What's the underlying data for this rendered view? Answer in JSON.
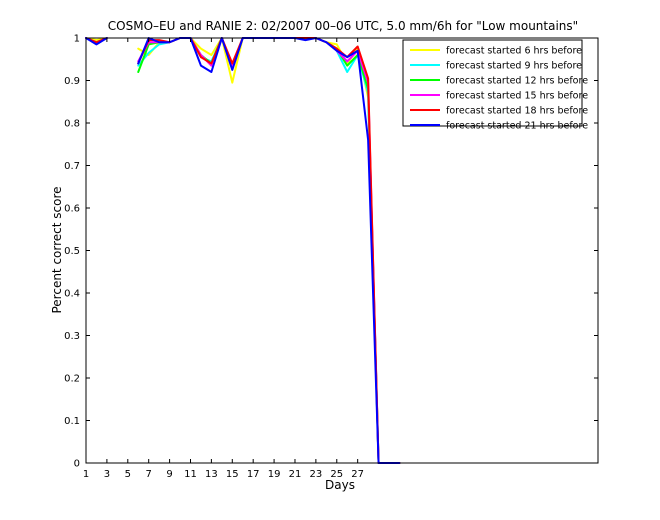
{
  "chart_data": {
    "type": "line",
    "title": "COSMO–EU and RANIE 2: 02/2007 00–06 UTC, 5.0 mm/6h for \"Low mountains\"",
    "xlabel": "Days",
    "ylabel": "Percent correct score",
    "xlim": [
      1,
      50
    ],
    "ylim": [
      0,
      1
    ],
    "xticks": [
      1,
      3,
      5,
      7,
      9,
      11,
      13,
      15,
      17,
      19,
      21,
      23,
      25,
      27
    ],
    "yticks": [
      0,
      0.1,
      0.2,
      0.3,
      0.4,
      0.5,
      0.6,
      0.7,
      0.8,
      0.9,
      1
    ],
    "ytick_labels": [
      "0",
      "0.1",
      "0.2",
      "0.3",
      "0.4",
      "0.5",
      "0.6",
      "0.7",
      "0.8",
      "0.9",
      "1"
    ],
    "grid": false,
    "legend_position": "top-right",
    "series": [
      {
        "name": "forecast started 6 hrs before",
        "color": "#ffff00",
        "segments": [
          [
            [
              1,
              1.0
            ],
            [
              2,
              0.995
            ],
            [
              3,
              1.0
            ]
          ],
          [
            [
              6,
              0.975
            ],
            [
              7,
              0.96
            ],
            [
              8,
              0.99
            ],
            [
              9,
              0.99
            ],
            [
              10,
              1.0
            ],
            [
              11,
              1.0
            ],
            [
              12,
              0.975
            ],
            [
              13,
              0.96
            ],
            [
              14,
              1.0
            ],
            [
              15,
              0.895
            ],
            [
              16,
              1.0
            ],
            [
              17,
              1.0
            ],
            [
              18,
              1.0
            ],
            [
              19,
              1.0
            ],
            [
              20,
              1.0
            ],
            [
              21,
              1.0
            ],
            [
              22,
              1.0
            ],
            [
              23,
              1.0
            ],
            [
              24,
              0.99
            ],
            [
              25,
              0.985
            ],
            [
              26,
              0.94
            ],
            [
              27,
              0.975
            ],
            [
              28,
              0.86
            ],
            [
              29,
              0.0
            ],
            [
              30,
              0.0
            ],
            [
              31,
              0.0
            ]
          ]
        ]
      },
      {
        "name": "forecast started 9 hrs before",
        "color": "#00ffff",
        "segments": [
          [
            [
              1,
              1.0
            ],
            [
              2,
              0.99
            ],
            [
              3,
              1.0
            ]
          ],
          [
            [
              6,
              0.935
            ],
            [
              7,
              0.965
            ],
            [
              8,
              0.985
            ],
            [
              9,
              0.99
            ],
            [
              10,
              1.0
            ],
            [
              11,
              1.0
            ],
            [
              12,
              0.955
            ],
            [
              13,
              0.945
            ],
            [
              14,
              1.0
            ],
            [
              15,
              0.93
            ],
            [
              16,
              1.0
            ],
            [
              17,
              1.0
            ],
            [
              18,
              1.0
            ],
            [
              19,
              1.0
            ],
            [
              20,
              1.0
            ],
            [
              21,
              1.0
            ],
            [
              22,
              1.0
            ],
            [
              23,
              1.0
            ],
            [
              24,
              0.99
            ],
            [
              25,
              0.97
            ],
            [
              26,
              0.92
            ],
            [
              27,
              0.96
            ],
            [
              28,
              0.87
            ],
            [
              29,
              0.0
            ],
            [
              30,
              0.0
            ],
            [
              31,
              0.0
            ]
          ]
        ]
      },
      {
        "name": "forecast started 12 hrs before",
        "color": "#00ff00",
        "segments": [
          [
            [
              1,
              1.0
            ],
            [
              2,
              0.99
            ],
            [
              3,
              1.0
            ]
          ],
          [
            [
              6,
              0.92
            ],
            [
              7,
              0.985
            ],
            [
              8,
              0.99
            ],
            [
              9,
              0.99
            ],
            [
              10,
              1.0
            ],
            [
              11,
              1.0
            ],
            [
              12,
              0.96
            ],
            [
              13,
              0.94
            ],
            [
              14,
              1.0
            ],
            [
              15,
              0.93
            ],
            [
              16,
              1.0
            ],
            [
              17,
              1.0
            ],
            [
              18,
              1.0
            ],
            [
              19,
              1.0
            ],
            [
              20,
              1.0
            ],
            [
              21,
              1.0
            ],
            [
              22,
              1.0
            ],
            [
              23,
              1.0
            ],
            [
              24,
              0.99
            ],
            [
              25,
              0.975
            ],
            [
              26,
              0.935
            ],
            [
              27,
              0.96
            ],
            [
              28,
              0.88
            ],
            [
              29,
              0.0
            ],
            [
              30,
              0.0
            ],
            [
              31,
              0.0
            ]
          ]
        ]
      },
      {
        "name": "forecast started 15 hrs before",
        "color": "#ff00ff",
        "segments": [
          [
            [
              1,
              1.0
            ],
            [
              2,
              0.99
            ],
            [
              3,
              1.0
            ]
          ],
          [
            [
              6,
              0.945
            ],
            [
              7,
              0.99
            ],
            [
              8,
              0.99
            ],
            [
              9,
              0.99
            ],
            [
              10,
              1.0
            ],
            [
              11,
              1.0
            ],
            [
              12,
              0.96
            ],
            [
              13,
              0.935
            ],
            [
              14,
              1.0
            ],
            [
              15,
              0.93
            ],
            [
              16,
              1.0
            ],
            [
              17,
              1.0
            ],
            [
              18,
              1.0
            ],
            [
              19,
              1.0
            ],
            [
              20,
              1.0
            ],
            [
              21,
              1.0
            ],
            [
              22,
              1.0
            ],
            [
              23,
              1.0
            ],
            [
              24,
              0.99
            ],
            [
              25,
              0.97
            ],
            [
              26,
              0.945
            ],
            [
              27,
              0.97
            ],
            [
              28,
              0.895
            ],
            [
              29,
              0.0
            ],
            [
              30,
              0.0
            ],
            [
              31,
              0.0
            ]
          ]
        ]
      },
      {
        "name": "forecast started 18 hrs before",
        "color": "#ff0000",
        "segments": [
          [
            [
              1,
              1.0
            ],
            [
              2,
              0.99
            ],
            [
              3,
              1.0
            ]
          ],
          [
            [
              6,
              0.94
            ],
            [
              7,
              0.995
            ],
            [
              8,
              0.995
            ],
            [
              9,
              0.99
            ],
            [
              10,
              1.0
            ],
            [
              11,
              1.0
            ],
            [
              12,
              0.955
            ],
            [
              13,
              0.94
            ],
            [
              14,
              1.0
            ],
            [
              15,
              0.94
            ],
            [
              16,
              1.0
            ],
            [
              17,
              1.0
            ],
            [
              18,
              1.0
            ],
            [
              19,
              1.0
            ],
            [
              20,
              1.0
            ],
            [
              21,
              1.0
            ],
            [
              22,
              1.0
            ],
            [
              23,
              1.0
            ],
            [
              24,
              0.99
            ],
            [
              25,
              0.975
            ],
            [
              26,
              0.955
            ],
            [
              27,
              0.98
            ],
            [
              28,
              0.905
            ],
            [
              29,
              0.0
            ],
            [
              30,
              0.0
            ],
            [
              31,
              0.0
            ]
          ]
        ]
      },
      {
        "name": "forecast started 21 hrs before",
        "color": "#0000ff",
        "segments": [
          [
            [
              1,
              1.0
            ],
            [
              2,
              0.985
            ],
            [
              3,
              1.0
            ]
          ],
          [
            [
              6,
              0.94
            ],
            [
              7,
              1.0
            ],
            [
              8,
              0.99
            ],
            [
              9,
              0.99
            ],
            [
              10,
              1.0
            ],
            [
              11,
              1.0
            ],
            [
              12,
              0.935
            ],
            [
              13,
              0.92
            ],
            [
              14,
              1.0
            ],
            [
              15,
              0.925
            ],
            [
              16,
              1.0
            ],
            [
              17,
              1.0
            ],
            [
              18,
              1.0
            ],
            [
              19,
              1.0
            ],
            [
              20,
              1.0
            ],
            [
              21,
              1.0
            ],
            [
              22,
              0.995
            ],
            [
              23,
              1.0
            ],
            [
              24,
              0.99
            ],
            [
              25,
              0.97
            ],
            [
              26,
              0.955
            ],
            [
              27,
              0.97
            ],
            [
              28,
              0.76
            ],
            [
              29,
              0.0
            ],
            [
              30,
              0.0
            ],
            [
              31,
              0.0
            ]
          ]
        ]
      }
    ]
  }
}
